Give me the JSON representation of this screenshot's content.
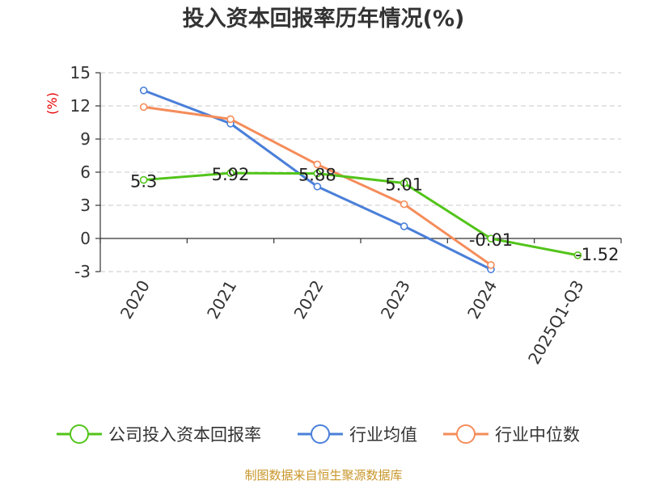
{
  "chart_data": {
    "type": "line",
    "title": "投入资本回报率历年情况(%)",
    "ylabel": "(%)",
    "xlabel": "",
    "categories": [
      "2020",
      "2021",
      "2022",
      "2023",
      "2024",
      "2025Q1-Q3"
    ],
    "ylim": [
      -3,
      15
    ],
    "yticks": [
      15,
      12,
      9,
      6,
      3,
      0,
      -3
    ],
    "grid": true,
    "legend_position": "bottom",
    "series": [
      {
        "name": "公司投入资本回报率",
        "color": "#52c41a",
        "values": [
          5.3,
          5.92,
          5.88,
          5.01,
          -0.01,
          -1.52
        ],
        "labels": [
          "5.3",
          "5.92",
          "5.88",
          "5.01",
          "-0.01",
          "-1.52"
        ]
      },
      {
        "name": "行业均值",
        "color": "#4a7fd9",
        "values": [
          13.4,
          10.4,
          4.7,
          1.1,
          -2.8,
          null
        ]
      },
      {
        "name": "行业中位数",
        "color": "#f58c5a",
        "values": [
          11.9,
          10.8,
          6.7,
          3.1,
          -2.4,
          null
        ]
      }
    ],
    "source": "制图数据来自恒生聚源数据库"
  }
}
